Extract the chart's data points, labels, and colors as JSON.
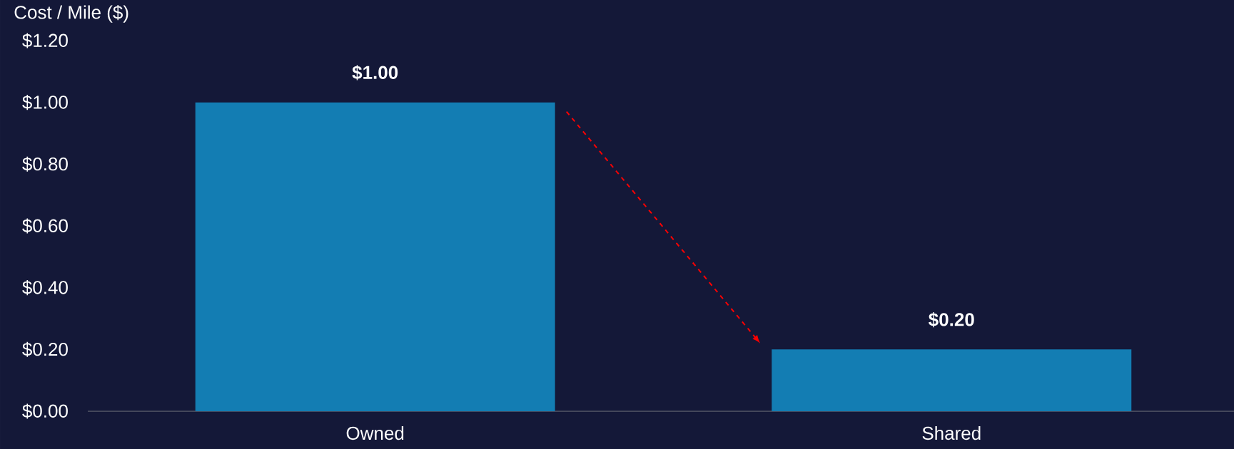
{
  "chart_data": {
    "type": "bar",
    "ylabel": "Cost / Mile ($)",
    "categories": [
      "Owned",
      "Shared"
    ],
    "values": [
      1.0,
      0.2
    ],
    "color": "#137db3",
    "value_labels": [
      "$1.00",
      "$0.20"
    ],
    "ylim": [
      0,
      1.2
    ],
    "yticks": [
      {
        "value": 0,
        "label": "$0.00"
      },
      {
        "value": 0.2,
        "label": "$0.20"
      },
      {
        "value": 0.4,
        "label": "$0.40"
      },
      {
        "value": 0.6,
        "label": "$0.60"
      },
      {
        "value": 0.8,
        "label": "$0.80"
      },
      {
        "value": 1.0,
        "label": "$1.00"
      },
      {
        "value": 1.2,
        "label": "$1.20"
      }
    ],
    "grid": false
  }
}
